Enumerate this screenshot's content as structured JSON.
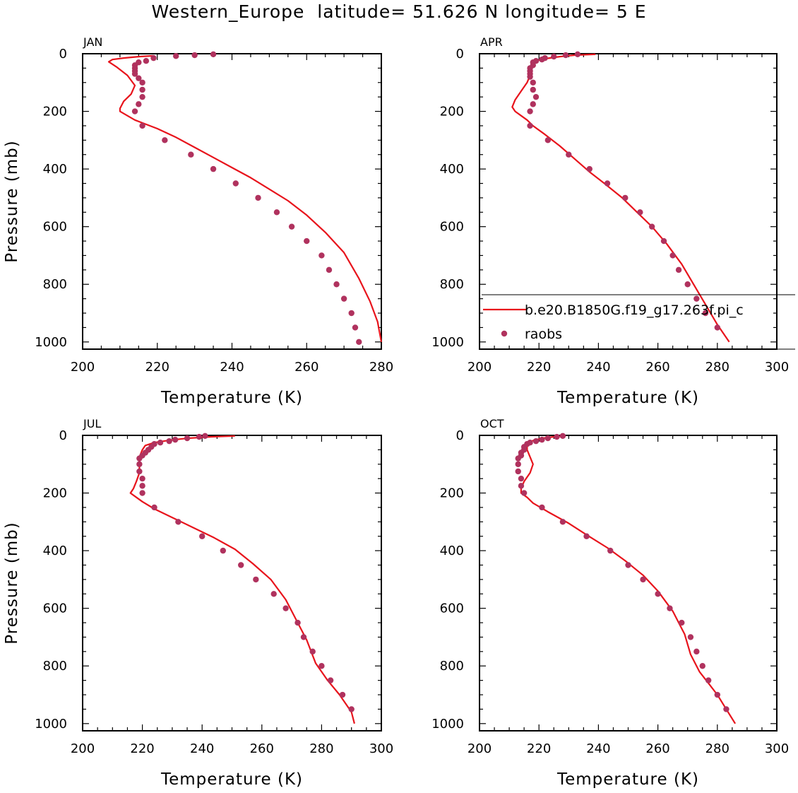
{
  "figure_title": "Western_Europe  latitude= 51.626 N longitude= 5 E",
  "colors": {
    "model": "#e8141c",
    "obs": "#b0325e",
    "axis": "#000000"
  },
  "legend": {
    "model_label": "b.e20.B1850G.f19_g17.263f.pi_c",
    "obs_label": "raobs"
  },
  "chart_data": [
    {
      "type": "line",
      "panel_label": "JAN",
      "xlabel": "Temperature (K)",
      "ylabel": "Pressure (mb)",
      "xlim": [
        200,
        280
      ],
      "ylim": [
        1025,
        0
      ],
      "x_ticks": [
        200,
        220,
        240,
        260,
        280
      ],
      "y_ticks": [
        0,
        200,
        400,
        600,
        800,
        1000
      ],
      "series": [
        {
          "name": "b.e20.B1850G.f19_g17.263f.pi_c",
          "points": [
            [
              219,
              7
            ],
            [
              215,
              10
            ],
            [
              211,
              15
            ],
            [
              208,
              20
            ],
            [
              207,
              28
            ],
            [
              209,
              45
            ],
            [
              212,
              75
            ],
            [
              214,
              110
            ],
            [
              213,
              140
            ],
            [
              211,
              165
            ],
            [
              210,
              190
            ],
            [
              210,
              200
            ],
            [
              212,
              215
            ],
            [
              214,
              230
            ],
            [
              216,
              240
            ],
            [
              220,
              260
            ],
            [
              225,
              290
            ],
            [
              230,
              325
            ],
            [
              235,
              360
            ],
            [
              240,
              395
            ],
            [
              245,
              430
            ],
            [
              250,
              470
            ],
            [
              255,
              510
            ],
            [
              260,
              560
            ],
            [
              265,
              620
            ],
            [
              270,
              690
            ],
            [
              274,
              780
            ],
            [
              277,
              860
            ],
            [
              279,
              930
            ],
            [
              280,
              1000
            ]
          ]
        },
        {
          "name": "raobs",
          "style": "markers",
          "points": [
            [
              235,
              2
            ],
            [
              230,
              5
            ],
            [
              225,
              8
            ],
            [
              219,
              15
            ],
            [
              217,
              25
            ],
            [
              215,
              30
            ],
            [
              214,
              40
            ],
            [
              214,
              50
            ],
            [
              214,
              60
            ],
            [
              214,
              70
            ],
            [
              215,
              85
            ],
            [
              216,
              100
            ],
            [
              216,
              125
            ],
            [
              216,
              150
            ],
            [
              215,
              175
            ],
            [
              214,
              200
            ],
            [
              216,
              250
            ],
            [
              222,
              300
            ],
            [
              229,
              350
            ],
            [
              235,
              400
            ],
            [
              241,
              450
            ],
            [
              247,
              500
            ],
            [
              252,
              550
            ],
            [
              256,
              600
            ],
            [
              260,
              650
            ],
            [
              264,
              700
            ],
            [
              266,
              750
            ],
            [
              268,
              800
            ],
            [
              270,
              850
            ],
            [
              272,
              900
            ],
            [
              273,
              950
            ],
            [
              274,
              1000
            ]
          ]
        }
      ]
    },
    {
      "type": "line",
      "panel_label": "APR",
      "xlabel": "Temperature (K)",
      "ylabel": "",
      "xlim": [
        200,
        300
      ],
      "ylim": [
        1025,
        0
      ],
      "x_ticks": [
        200,
        220,
        240,
        260,
        280,
        300
      ],
      "y_ticks": [
        0,
        200,
        400,
        600,
        800,
        1000
      ],
      "series": [
        {
          "name": "b.e20.B1850G.f19_g17.263f.pi_c",
          "points": [
            [
              239,
              2
            ],
            [
              232,
              5
            ],
            [
              227,
              10
            ],
            [
              223,
              16
            ],
            [
              220,
              22
            ],
            [
              218,
              32
            ],
            [
              217,
              50
            ],
            [
              217,
              75
            ],
            [
              216,
              100
            ],
            [
              214,
              130
            ],
            [
              212,
              160
            ],
            [
              211,
              185
            ],
            [
              212,
              200
            ],
            [
              214,
              215
            ],
            [
              216,
              230
            ],
            [
              218,
              250
            ],
            [
              222,
              280
            ],
            [
              227,
              320
            ],
            [
              232,
              365
            ],
            [
              237,
              410
            ],
            [
              242,
              450
            ],
            [
              248,
              500
            ],
            [
              253,
              550
            ],
            [
              258,
              600
            ],
            [
              263,
              660
            ],
            [
              268,
              730
            ],
            [
              272,
              800
            ],
            [
              276,
              870
            ],
            [
              280,
              940
            ],
            [
              284,
              1000
            ]
          ]
        },
        {
          "name": "raobs",
          "style": "markers",
          "points": [
            [
              233,
              2
            ],
            [
              229,
              5
            ],
            [
              225,
              10
            ],
            [
              222,
              15
            ],
            [
              221,
              20
            ],
            [
              219,
              25
            ],
            [
              218,
              30
            ],
            [
              218,
              40
            ],
            [
              217,
              50
            ],
            [
              217,
              60
            ],
            [
              217,
              70
            ],
            [
              217,
              80
            ],
            [
              218,
              100
            ],
            [
              218,
              125
            ],
            [
              219,
              150
            ],
            [
              218,
              175
            ],
            [
              217,
              200
            ],
            [
              217,
              250
            ],
            [
              223,
              300
            ],
            [
              230,
              350
            ],
            [
              237,
              400
            ],
            [
              243,
              450
            ],
            [
              249,
              500
            ],
            [
              254,
              550
            ],
            [
              258,
              600
            ],
            [
              262,
              650
            ],
            [
              265,
              700
            ],
            [
              267,
              750
            ],
            [
              270,
              800
            ],
            [
              273,
              850
            ],
            [
              276,
              900
            ],
            [
              280,
              950
            ]
          ]
        }
      ]
    },
    {
      "type": "line",
      "panel_label": "JUL",
      "xlabel": "Temperature (K)",
      "ylabel": "Pressure (mb)",
      "xlim": [
        200,
        300
      ],
      "ylim": [
        1025,
        0
      ],
      "x_ticks": [
        200,
        220,
        240,
        260,
        280,
        300
      ],
      "y_ticks": [
        0,
        200,
        400,
        600,
        800,
        1000
      ],
      "series": [
        {
          "name": "b.e20.B1850G.f19_g17.263f.pi_c",
          "points": [
            [
              251,
              2
            ],
            [
              243,
              5
            ],
            [
              235,
              10
            ],
            [
              229,
              17
            ],
            [
              224,
              25
            ],
            [
              221,
              35
            ],
            [
              220,
              50
            ],
            [
              219,
              75
            ],
            [
              219,
              100
            ],
            [
              219,
              130
            ],
            [
              218,
              160
            ],
            [
              217,
              185
            ],
            [
              216,
              200
            ],
            [
              218,
              215
            ],
            [
              220,
              230
            ],
            [
              224,
              255
            ],
            [
              230,
              285
            ],
            [
              237,
              320
            ],
            [
              244,
              355
            ],
            [
              251,
              395
            ],
            [
              257,
              445
            ],
            [
              263,
              500
            ],
            [
              268,
              570
            ],
            [
              272,
              650
            ],
            [
              275,
              710
            ],
            [
              278,
              790
            ],
            [
              282,
              850
            ],
            [
              286,
              900
            ],
            [
              290,
              960
            ],
            [
              291,
              1000
            ]
          ]
        },
        {
          "name": "raobs",
          "style": "markers",
          "points": [
            [
              241,
              2
            ],
            [
              239,
              5
            ],
            [
              235,
              10
            ],
            [
              231,
              15
            ],
            [
              229,
              20
            ],
            [
              226,
              25
            ],
            [
              224,
              30
            ],
            [
              223,
              40
            ],
            [
              222,
              50
            ],
            [
              221,
              60
            ],
            [
              220,
              70
            ],
            [
              219,
              80
            ],
            [
              219,
              100
            ],
            [
              219,
              125
            ],
            [
              220,
              150
            ],
            [
              220,
              175
            ],
            [
              220,
              200
            ],
            [
              224,
              250
            ],
            [
              232,
              300
            ],
            [
              240,
              350
            ],
            [
              247,
              400
            ],
            [
              253,
              450
            ],
            [
              258,
              500
            ],
            [
              264,
              550
            ],
            [
              268,
              600
            ],
            [
              272,
              650
            ],
            [
              274,
              700
            ],
            [
              277,
              750
            ],
            [
              280,
              800
            ],
            [
              283,
              850
            ],
            [
              287,
              900
            ],
            [
              290,
              950
            ]
          ]
        }
      ]
    },
    {
      "type": "line",
      "panel_label": "OCT",
      "xlabel": "Temperature (K)",
      "ylabel": "",
      "xlim": [
        200,
        300
      ],
      "ylim": [
        1025,
        0
      ],
      "x_ticks": [
        200,
        220,
        240,
        260,
        280,
        300
      ],
      "y_ticks": [
        0,
        200,
        400,
        600,
        800,
        1000
      ],
      "series": [
        {
          "name": "b.e20.B1850G.f19_g17.263f.pi_c",
          "points": [
            [
              229,
              2
            ],
            [
              225,
              5
            ],
            [
              221,
              10
            ],
            [
              218,
              18
            ],
            [
              216,
              30
            ],
            [
              216,
              50
            ],
            [
              217,
              75
            ],
            [
              218,
              100
            ],
            [
              217,
              130
            ],
            [
              215,
              160
            ],
            [
              214,
              185
            ],
            [
              214,
              200
            ],
            [
              216,
              215
            ],
            [
              218,
              235
            ],
            [
              223,
              265
            ],
            [
              230,
              305
            ],
            [
              236,
              345
            ],
            [
              243,
              390
            ],
            [
              249,
              435
            ],
            [
              255,
              485
            ],
            [
              260,
              540
            ],
            [
              265,
              610
            ],
            [
              269,
              690
            ],
            [
              271,
              760
            ],
            [
              274,
              820
            ],
            [
              277,
              860
            ],
            [
              280,
              900
            ],
            [
              283,
              950
            ],
            [
              286,
              1000
            ]
          ]
        },
        {
          "name": "raobs",
          "style": "markers",
          "points": [
            [
              228,
              2
            ],
            [
              226,
              5
            ],
            [
              223,
              10
            ],
            [
              221,
              15
            ],
            [
              219,
              20
            ],
            [
              217,
              25
            ],
            [
              216,
              30
            ],
            [
              215,
              40
            ],
            [
              215,
              50
            ],
            [
              214,
              60
            ],
            [
              214,
              70
            ],
            [
              213,
              80
            ],
            [
              213,
              100
            ],
            [
              213,
              125
            ],
            [
              214,
              150
            ],
            [
              214,
              175
            ],
            [
              215,
              200
            ],
            [
              221,
              250
            ],
            [
              228,
              300
            ],
            [
              236,
              350
            ],
            [
              244,
              400
            ],
            [
              250,
              450
            ],
            [
              255,
              500
            ],
            [
              260,
              550
            ],
            [
              264,
              600
            ],
            [
              268,
              650
            ],
            [
              271,
              700
            ],
            [
              273,
              750
            ],
            [
              275,
              800
            ],
            [
              277,
              850
            ],
            [
              280,
              900
            ],
            [
              283,
              950
            ]
          ]
        }
      ]
    }
  ]
}
